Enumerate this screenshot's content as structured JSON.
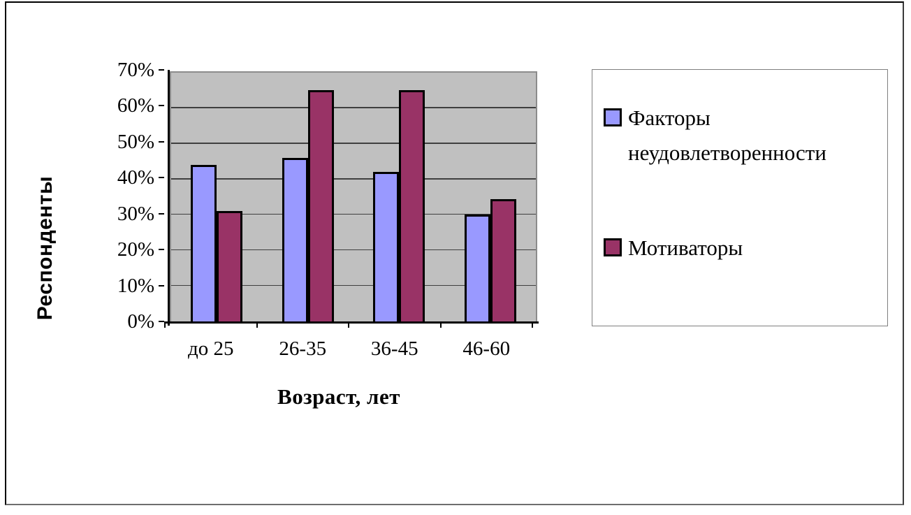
{
  "chart_data": {
    "type": "bar",
    "categories": [
      "до 25",
      "26-35",
      "36-45",
      "46-60"
    ],
    "series": [
      {
        "name": "Факторы неудовлетворенности",
        "color": "#9999FF",
        "values": [
          44,
          46,
          42,
          30
        ]
      },
      {
        "name": "Мотиваторы",
        "color": "#993366",
        "values": [
          31,
          65,
          65,
          34.5
        ]
      }
    ],
    "xlabel": "Возраст, лет",
    "ylabel": "Респонденты",
    "ylim": [
      0,
      70
    ],
    "ytick_step": 10,
    "yticks": [
      "0%",
      "10%",
      "20%",
      "30%",
      "40%",
      "50%",
      "60%",
      "70%"
    ],
    "grid": true,
    "legend_position": "right",
    "plot_bg_color": "#C0C0C0",
    "gridline_color": "#3f3f3f"
  }
}
